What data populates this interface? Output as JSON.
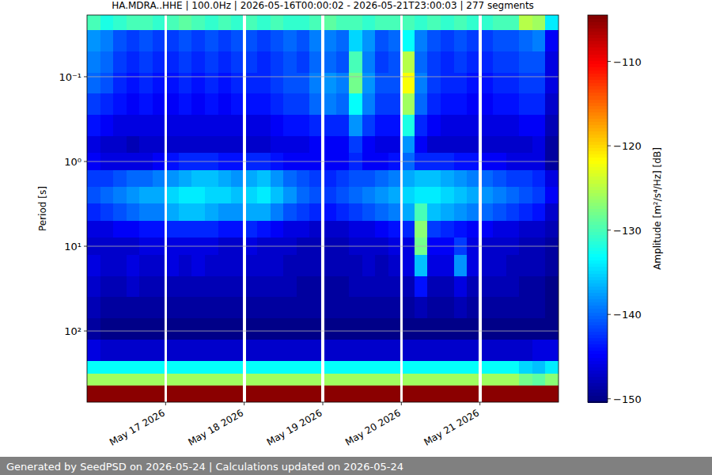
{
  "chart_data": {
    "type": "heatmap",
    "title": "HA.MDRA..HHE | 100.0Hz | 2026-05-16T00:00:02 - 2026-05-21T23:00:03 | 277 segments",
    "ylabel": "Period [s]",
    "footer": "Generated by SeedPSD on 2026-05-24 | Calculations updated on 2026-05-24",
    "log": "y",
    "grid": true,
    "xlim": [
      0,
      144
    ],
    "xticks": [
      {
        "value": 24,
        "label": "May 17 2026"
      },
      {
        "value": 48,
        "label": "May 18 2026"
      },
      {
        "value": 72,
        "label": "May 19 2026"
      },
      {
        "value": 96,
        "label": "May 20 2026"
      },
      {
        "value": 120,
        "label": "May 21 2026"
      }
    ],
    "ylim": [
      0.0187,
      692
    ],
    "yticks": [
      {
        "value": 0.1,
        "label": "10⁻¹"
      },
      {
        "value": 1,
        "label": "10⁰"
      },
      {
        "value": 10,
        "label": "10¹"
      },
      {
        "value": 100,
        "label": "10²"
      }
    ],
    "time_edges": [
      0,
      4,
      8,
      12,
      16,
      20,
      23.5,
      24.5,
      28,
      32,
      36,
      40,
      44,
      47.5,
      48.5,
      52,
      56,
      60,
      64,
      68,
      71.5,
      72.5,
      76,
      80,
      84,
      88,
      92,
      95.5,
      96.5,
      100,
      104,
      108,
      112,
      116,
      119.5,
      120.5,
      124,
      128,
      132,
      136,
      140,
      144
    ],
    "period_edges": [
      0.0187,
      0.028,
      0.05,
      0.089,
      0.158,
      0.28,
      0.5,
      0.79,
      1.26,
      2.0,
      3.16,
      5.0,
      7.9,
      12.6,
      22.4,
      39.8,
      70.8,
      126,
      224,
      316,
      442,
      692
    ],
    "cells": [
      [
        -130,
        -132,
        -131,
        -130,
        -130,
        -131,
        null,
        -130,
        -129,
        -130,
        -131,
        -130,
        -131,
        null,
        -130,
        -131,
        -130,
        -131,
        -131,
        -130,
        null,
        -129,
        -130,
        -130,
        -131,
        -130,
        -130,
        null,
        -130,
        -131,
        -130,
        -131,
        -130,
        -131,
        null,
        -131,
        -130,
        -130,
        -125,
        -126,
        -134
      ],
      [
        -138,
        -139,
        -141,
        -142,
        -141,
        -142,
        null,
        -142,
        -141,
        -142,
        -141,
        -142,
        -141,
        null,
        -141,
        -142,
        -141,
        -140,
        -141,
        -139,
        null,
        -139,
        -140,
        -135,
        -138,
        -141,
        -140,
        null,
        -133,
        -139,
        -141,
        -142,
        -141,
        -142,
        null,
        -142,
        -141,
        -141,
        -140,
        -139,
        -145
      ],
      [
        -139,
        -140,
        -142,
        -143,
        -142,
        -143,
        null,
        -143,
        -142,
        -143,
        -142,
        -143,
        -142,
        null,
        -142,
        -143,
        -142,
        -141,
        -142,
        -140,
        null,
        -140,
        -141,
        -130,
        -139,
        -142,
        -141,
        null,
        -125,
        -140,
        -142,
        -143,
        -142,
        -143,
        null,
        -143,
        -142,
        -142,
        -141,
        -141,
        -146
      ],
      [
        -140,
        -141,
        -143,
        -144,
        -143,
        -144,
        null,
        -144,
        -143,
        -144,
        -143,
        -144,
        -143,
        null,
        -143,
        -143,
        -142,
        -141,
        -141,
        -139,
        null,
        -138,
        -139,
        -128,
        -138,
        -141,
        -141,
        null,
        -122,
        -139,
        -142,
        -143,
        -143,
        -144,
        null,
        -144,
        -143,
        -143,
        -142,
        -142,
        -146
      ],
      [
        -142,
        -143,
        -144,
        -145,
        -144,
        -145,
        null,
        -145,
        -144,
        -145,
        -144,
        -145,
        -144,
        null,
        -144,
        -144,
        -143,
        -142,
        -142,
        -140,
        null,
        -139,
        -140,
        -133,
        -139,
        -142,
        -142,
        null,
        -126,
        -140,
        -143,
        -144,
        -144,
        -145,
        null,
        -145,
        -144,
        -144,
        -143,
        -143,
        -147
      ],
      [
        -144,
        -145,
        -146,
        -146,
        -146,
        -146,
        null,
        -146,
        -146,
        -146,
        -146,
        -146,
        -146,
        null,
        -146,
        -146,
        -145,
        -144,
        -144,
        -143,
        null,
        -143,
        -143,
        -138,
        -142,
        -144,
        -144,
        null,
        -132,
        -143,
        -145,
        -146,
        -146,
        -146,
        null,
        -146,
        -146,
        -146,
        -145,
        -145,
        -148
      ],
      [
        -146,
        -147,
        -147,
        -148,
        -147,
        -147,
        null,
        -147,
        -147,
        -147,
        -147,
        -147,
        -147,
        null,
        -147,
        -147,
        -146,
        -146,
        -146,
        -145,
        null,
        -145,
        -145,
        -142,
        -145,
        -146,
        -146,
        null,
        -138,
        -145,
        -147,
        -147,
        -147,
        -147,
        null,
        -147,
        -147,
        -147,
        -147,
        -146,
        -149
      ],
      [
        -145,
        -146,
        -146,
        -146,
        -146,
        -145,
        null,
        -144,
        -143,
        -143,
        -143,
        -144,
        -144,
        null,
        -143,
        -143,
        -144,
        -145,
        -145,
        -145,
        null,
        -145,
        -145,
        -143,
        -145,
        -145,
        -144,
        null,
        -140,
        -143,
        -143,
        -143,
        -144,
        -144,
        null,
        -145,
        -145,
        -146,
        -146,
        -146,
        -149
      ],
      [
        -142,
        -142,
        -141,
        -140,
        -140,
        -139,
        null,
        -138,
        -137,
        -136,
        -136,
        -137,
        -138,
        null,
        -137,
        -136,
        -138,
        -140,
        -141,
        -142,
        null,
        -143,
        -142,
        -141,
        -141,
        -140,
        -139,
        null,
        -137,
        -136,
        -136,
        -137,
        -138,
        -139,
        null,
        -140,
        -141,
        -142,
        -142,
        -143,
        -146
      ],
      [
        -141,
        -140,
        -139,
        -138,
        -137,
        -137,
        null,
        -135,
        -134,
        -134,
        -135,
        -135,
        -136,
        null,
        -135,
        -134,
        -136,
        -138,
        -140,
        -141,
        null,
        -142,
        -141,
        -140,
        -139,
        -138,
        -137,
        null,
        -135,
        -134,
        -134,
        -135,
        -136,
        -137,
        null,
        -138,
        -139,
        -140,
        -141,
        -142,
        -145
      ],
      [
        -143,
        -142,
        -141,
        -140,
        -139,
        -139,
        null,
        -137,
        -136,
        -136,
        -137,
        -138,
        -138,
        null,
        -137,
        -137,
        -139,
        -141,
        -142,
        -143,
        null,
        -144,
        -143,
        -142,
        -141,
        -140,
        -139,
        null,
        -137,
        -130,
        -136,
        -137,
        -138,
        -139,
        null,
        -140,
        -141,
        -142,
        -143,
        -144,
        -147
      ],
      [
        -146,
        -146,
        -145,
        -145,
        -144,
        -144,
        null,
        -143,
        -143,
        -143,
        -143,
        -144,
        -144,
        null,
        -143,
        -144,
        -145,
        -146,
        -146,
        -147,
        null,
        -147,
        -147,
        -146,
        -146,
        -145,
        -144,
        null,
        -143,
        -127,
        -142,
        -143,
        -144,
        -145,
        null,
        -145,
        -146,
        -146,
        -147,
        -147,
        -148
      ],
      [
        -147,
        -147,
        -147,
        -147,
        -146,
        -146,
        null,
        -146,
        -146,
        -146,
        -146,
        -147,
        -147,
        null,
        -146,
        -147,
        -147,
        -147,
        -148,
        -148,
        null,
        -148,
        -148,
        -147,
        -147,
        -147,
        -146,
        null,
        -146,
        -128,
        -145,
        -145,
        -142,
        -146,
        null,
        -147,
        -147,
        -147,
        -148,
        -148,
        -149
      ],
      [
        -146,
        -147,
        -147,
        -146,
        -147,
        -147,
        null,
        -146,
        -147,
        -146,
        -147,
        -147,
        -147,
        null,
        -147,
        -147,
        -147,
        -148,
        -148,
        -148,
        null,
        -148,
        -148,
        -148,
        -147,
        -148,
        -147,
        null,
        -146,
        -136,
        -146,
        -146,
        -138,
        -146,
        null,
        -147,
        -147,
        -148,
        -148,
        -148,
        -149
      ],
      [
        -147,
        -148,
        -148,
        -147,
        -148,
        -148,
        null,
        -148,
        -148,
        -148,
        -148,
        -148,
        -148,
        null,
        -148,
        -148,
        -148,
        -148,
        -149,
        -149,
        null,
        -149,
        -149,
        -148,
        -148,
        -148,
        -148,
        null,
        -148,
        -144,
        -148,
        -148,
        -146,
        -148,
        null,
        -148,
        -148,
        -148,
        -149,
        -149,
        -150
      ],
      [
        -148,
        -149,
        -149,
        -149,
        -149,
        -149,
        null,
        -149,
        -149,
        -149,
        -149,
        -149,
        -149,
        null,
        -149,
        -149,
        -149,
        -149,
        -149,
        -149,
        null,
        -149,
        -149,
        -149,
        -149,
        -149,
        -149,
        null,
        -149,
        -148,
        -149,
        -149,
        -148,
        -149,
        null,
        -149,
        -149,
        -149,
        -149,
        -149,
        -150
      ],
      [
        -149,
        -150,
        -150,
        -150,
        -150,
        -150,
        null,
        -150,
        -150,
        -150,
        -150,
        -150,
        -150,
        null,
        -150,
        -150,
        -150,
        -150,
        -150,
        -150,
        null,
        -150,
        -150,
        -150,
        -150,
        -150,
        -150,
        null,
        -150,
        -150,
        -150,
        -150,
        -150,
        -150,
        null,
        -150,
        -150,
        -150,
        -150,
        -150,
        -150
      ],
      [
        -146,
        -147,
        -147,
        -147,
        -147,
        -147,
        null,
        -147,
        -147,
        -147,
        -147,
        -147,
        -147,
        null,
        -147,
        -147,
        -147,
        -147,
        -147,
        -147,
        null,
        -147,
        -147,
        -147,
        -147,
        -147,
        -147,
        null,
        -147,
        -147,
        -147,
        -147,
        -147,
        -147,
        null,
        -147,
        -147,
        -147,
        -147,
        -146,
        -146
      ],
      [
        -133,
        -133,
        -133,
        -133,
        -133,
        -133,
        null,
        -133,
        -133,
        -133,
        -133,
        -133,
        -133,
        null,
        -133,
        -133,
        -133,
        -133,
        -133,
        -133,
        null,
        -133,
        -133,
        -133,
        -133,
        -133,
        -133,
        null,
        -133,
        -133,
        -133,
        -133,
        -133,
        -133,
        null,
        -133,
        -133,
        -133,
        -135,
        -136,
        -134
      ],
      [
        -126,
        -126,
        -126,
        -126,
        -126,
        -126,
        null,
        -126,
        -126,
        -126,
        -126,
        -126,
        -126,
        null,
        -126,
        -126,
        -126,
        -126,
        -126,
        -126,
        null,
        -126,
        -126,
        -126,
        -126,
        -126,
        -126,
        null,
        -126,
        -126,
        -126,
        -126,
        -126,
        -126,
        null,
        -126,
        -126,
        -126,
        -128,
        -129,
        -127
      ],
      [
        -105,
        -105,
        -105,
        -105,
        -105,
        -105,
        null,
        -105,
        -105,
        -105,
        -105,
        -105,
        -105,
        null,
        -105,
        -105,
        -105,
        -105,
        -105,
        -105,
        null,
        -105,
        -105,
        -105,
        -105,
        -105,
        -105,
        null,
        -105,
        -105,
        -105,
        -105,
        -105,
        -105,
        null,
        -105,
        -105,
        -105,
        -105,
        -105,
        -105
      ]
    ],
    "colorbar": {
      "label": "Amplitude [m²/s⁴/Hz] [dB]",
      "lim": [
        -150.4,
        -104.5
      ],
      "ticks": [
        {
          "value": -150,
          "label": "−150"
        },
        {
          "value": -140,
          "label": "−140"
        },
        {
          "value": -130,
          "label": "−130"
        },
        {
          "value": -120,
          "label": "−120"
        },
        {
          "value": -110,
          "label": "−110"
        }
      ]
    }
  }
}
